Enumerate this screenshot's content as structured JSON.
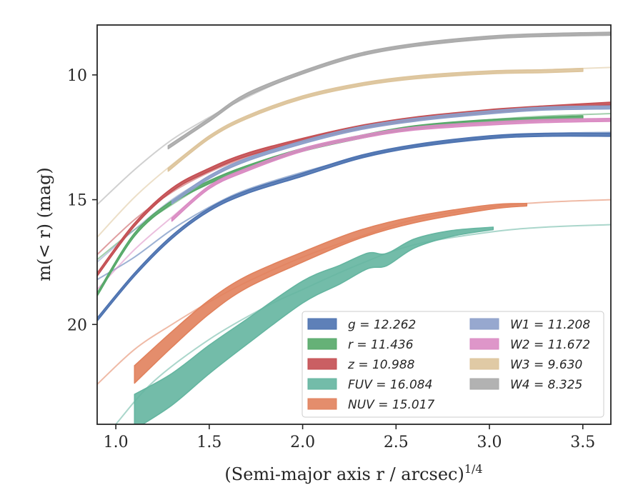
{
  "chart_data": {
    "type": "line",
    "xlabel": "(Semi-major axis r / arcsec)",
    "xlabel_exponent": "1/4",
    "ylabel": "m(< r) (mag)",
    "xlim": [
      0.9,
      3.65
    ],
    "ylim": [
      24.0,
      8.0
    ],
    "y_inverted": true,
    "xticks": [
      1.0,
      1.5,
      2.0,
      2.5,
      3.0,
      3.5
    ],
    "xtick_labels": [
      "1.0",
      "1.5",
      "2.0",
      "2.5",
      "3.0",
      "3.5"
    ],
    "yticks": [
      10,
      15,
      20
    ],
    "ytick_labels": [
      "10",
      "15",
      "20"
    ],
    "grid": false,
    "legend_position": "lower-right",
    "legend_columns": 2,
    "series": [
      {
        "name": "g = 12.262",
        "label_var": "g",
        "label_val": "12.262",
        "color": "#4c72b0",
        "x": [
          0.9,
          1.1,
          1.3,
          1.5,
          1.7,
          2.0,
          2.3,
          2.6,
          3.0,
          3.3,
          3.65
        ],
        "y": [
          19.8,
          18.0,
          16.5,
          15.4,
          14.7,
          14.0,
          13.3,
          12.85,
          12.5,
          12.4,
          12.4
        ],
        "band": 0.06,
        "model": {
          "x": [
            0.9,
            1.1,
            1.3,
            1.5,
            1.7,
            2.0,
            2.3,
            2.6,
            3.0,
            3.3,
            3.65
          ],
          "y": [
            18.2,
            17.3,
            16.2,
            15.3,
            14.6,
            13.9,
            13.3,
            12.85,
            12.5,
            12.35,
            12.3
          ]
        }
      },
      {
        "name": "r = 11.436",
        "label_var": "r",
        "label_val": "11.436",
        "color": "#55a868",
        "x": [
          0.9,
          1.1,
          1.3,
          1.5,
          1.7,
          2.0,
          2.3,
          2.6,
          3.0,
          3.5
        ],
        "y": [
          18.8,
          16.4,
          15.1,
          14.3,
          13.7,
          13.0,
          12.5,
          12.1,
          11.85,
          11.7
        ],
        "band": 0.06,
        "model": {
          "x": [
            0.9,
            1.1,
            1.3,
            1.5,
            1.7,
            2.0,
            2.3,
            2.6,
            3.0,
            3.3,
            3.65
          ],
          "y": [
            17.4,
            16.2,
            15.2,
            14.3,
            13.7,
            13.0,
            12.5,
            12.1,
            11.8,
            11.65,
            11.55
          ]
        }
      },
      {
        "name": "z = 10.988",
        "label_var": "z",
        "label_val": "10.988",
        "color": "#c44e52",
        "x": [
          0.9,
          1.1,
          1.3,
          1.5,
          1.7,
          2.0,
          2.3,
          2.6,
          3.0,
          3.3,
          3.65
        ],
        "y": [
          18.0,
          16.0,
          14.6,
          13.8,
          13.2,
          12.6,
          12.1,
          11.75,
          11.45,
          11.3,
          11.15
        ],
        "band": 0.06,
        "model": {
          "x": [
            0.9,
            1.1,
            1.3,
            1.5,
            1.7,
            2.0,
            2.3,
            2.6,
            3.0,
            3.3,
            3.65
          ],
          "y": [
            17.2,
            15.8,
            14.7,
            13.9,
            13.3,
            12.6,
            12.1,
            11.75,
            11.45,
            11.3,
            11.2
          ]
        }
      },
      {
        "name": "FUV = 16.084",
        "label_var": "FUV",
        "label_val": "16.084",
        "color": "#64b5a0",
        "x": [
          1.1,
          1.3,
          1.5,
          1.7,
          2.0,
          2.2,
          2.35,
          2.45,
          2.6,
          2.8,
          3.02
        ],
        "y": [
          23.5,
          22.6,
          21.4,
          20.3,
          18.7,
          18.0,
          17.45,
          17.4,
          16.75,
          16.35,
          16.15
        ],
        "band_start": 0.7,
        "band_end": 0.05,
        "model": {
          "x": [
            1.0,
            1.2,
            1.5,
            1.8,
            2.0,
            2.3,
            2.6,
            3.0,
            3.3,
            3.65
          ],
          "y": [
            24.0,
            22.3,
            20.6,
            19.3,
            18.6,
            17.6,
            16.8,
            16.3,
            16.1,
            16.0
          ]
        }
      },
      {
        "name": "NUV = 15.017",
        "label_var": "NUV",
        "label_val": "15.017",
        "color": "#e1815c",
        "x": [
          1.1,
          1.3,
          1.5,
          1.7,
          2.0,
          2.3,
          2.6,
          3.0,
          3.2
        ],
        "y": [
          22.0,
          20.6,
          19.3,
          18.3,
          17.3,
          16.4,
          15.8,
          15.3,
          15.2
        ],
        "band_start": 0.35,
        "band_end": 0.05,
        "model": {
          "x": [
            0.9,
            1.1,
            1.3,
            1.5,
            1.7,
            2.0,
            2.3,
            2.6,
            3.0,
            3.3,
            3.65
          ],
          "y": [
            22.4,
            21.0,
            20.0,
            19.1,
            18.3,
            17.3,
            16.5,
            15.8,
            15.3,
            15.1,
            15.0
          ]
        }
      },
      {
        "name": "W1 = 11.208",
        "label_var": "W1",
        "label_val": "11.208",
        "color": "#8c9fca",
        "x": [
          1.3,
          1.5,
          1.7,
          2.0,
          2.3,
          2.6,
          3.0,
          3.3,
          3.65
        ],
        "y": [
          15.1,
          14.1,
          13.4,
          12.7,
          12.15,
          11.8,
          11.5,
          11.35,
          11.3
        ],
        "band": 0.06,
        "model": {
          "x": [
            0.9,
            1.1,
            1.3,
            1.5,
            1.7,
            2.0,
            2.3,
            2.6,
            3.0,
            3.3,
            3.65
          ],
          "y": [
            17.5,
            16.2,
            15.0,
            14.1,
            13.4,
            12.7,
            12.15,
            11.8,
            11.5,
            11.35,
            11.3
          ]
        }
      },
      {
        "name": "W2 = 11.672",
        "label_var": "W2",
        "label_val": "11.672",
        "color": "#da8bc3",
        "x": [
          1.3,
          1.5,
          1.7,
          2.0,
          2.3,
          2.6,
          3.0,
          3.3,
          3.65
        ],
        "y": [
          15.8,
          14.5,
          13.8,
          13.0,
          12.5,
          12.15,
          11.95,
          11.85,
          11.8
        ],
        "band": 0.06,
        "model": {
          "x": [
            0.9,
            1.1,
            1.3,
            1.5,
            1.7,
            2.0,
            2.3,
            2.6,
            3.0,
            3.3,
            3.65
          ],
          "y": [
            18.6,
            17.0,
            15.7,
            14.5,
            13.8,
            13.0,
            12.5,
            12.15,
            11.95,
            11.85,
            11.8
          ]
        }
      },
      {
        "name": "W3 = 9.630",
        "label_var": "W3",
        "label_val": "9.630",
        "color": "#ddc49b",
        "x": [
          1.28,
          1.5,
          1.7,
          2.0,
          2.3,
          2.6,
          3.0,
          3.3,
          3.5
        ],
        "y": [
          13.8,
          12.5,
          11.7,
          10.9,
          10.4,
          10.1,
          9.9,
          9.85,
          9.8
        ],
        "band": 0.06,
        "model": {
          "x": [
            0.9,
            1.1,
            1.3,
            1.5,
            1.7,
            2.0,
            2.3,
            2.6,
            3.0,
            3.3,
            3.65
          ],
          "y": [
            16.5,
            14.9,
            13.6,
            12.5,
            11.7,
            10.9,
            10.4,
            10.1,
            9.9,
            9.8,
            9.7
          ]
        }
      },
      {
        "name": "W4 = 8.325",
        "label_var": "W4",
        "label_val": "8.325",
        "color": "#aaaaaa",
        "x": [
          1.28,
          1.5,
          1.7,
          2.0,
          2.3,
          2.6,
          3.0,
          3.3,
          3.65
        ],
        "y": [
          12.9,
          11.8,
          10.8,
          9.9,
          9.2,
          8.8,
          8.5,
          8.4,
          8.35
        ],
        "band": 0.06,
        "model": {
          "x": [
            0.9,
            1.1,
            1.3,
            1.5,
            1.7,
            2.0,
            2.3,
            2.6,
            3.0,
            3.3,
            3.65
          ],
          "y": [
            15.2,
            13.8,
            12.6,
            11.7,
            10.9,
            9.9,
            9.2,
            8.8,
            8.5,
            8.4,
            8.35
          ]
        }
      }
    ]
  }
}
